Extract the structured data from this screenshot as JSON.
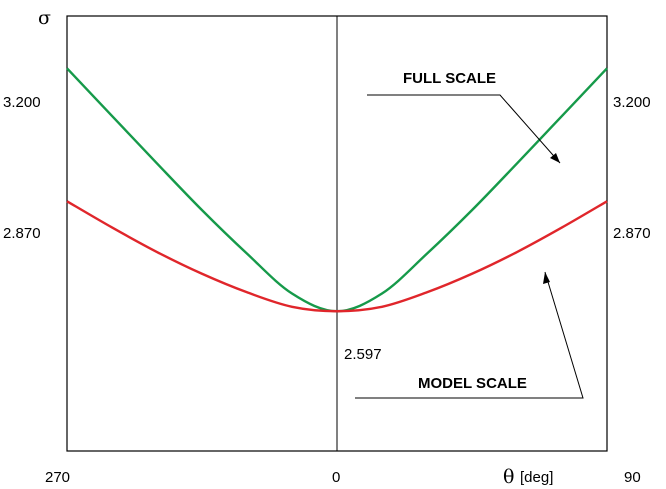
{
  "chart_data": {
    "type": "line",
    "ylabel": "σ",
    "xlabel_symbol": "θ",
    "xlabel_unit": "[deg]",
    "x_ticks": [
      "270",
      "0",
      "90"
    ],
    "x_range": [
      -90,
      90
    ],
    "ylim": [
      2.25,
      3.33
    ],
    "y_ticks_left": [
      "3.200",
      "2.870"
    ],
    "y_ticks_right": [
      "3.200",
      "2.870"
    ],
    "center_value_label": "2.597",
    "grid": false,
    "series": [
      {
        "name": "FULL SCALE",
        "color": "#169a4a",
        "x": [
          -90,
          -75,
          -60,
          -45,
          -30,
          -15,
          0,
          15,
          30,
          45,
          60,
          75,
          90
        ],
        "values": [
          3.2,
          3.082,
          2.964,
          2.848,
          2.74,
          2.641,
          2.597,
          2.641,
          2.74,
          2.848,
          2.964,
          3.082,
          3.2
        ]
      },
      {
        "name": "MODEL SCALE",
        "color": "#e0262b",
        "x": [
          -90,
          -75,
          -60,
          -45,
          -30,
          -15,
          0,
          15,
          30,
          45,
          60,
          75,
          90
        ],
        "values": [
          2.87,
          2.805,
          2.744,
          2.69,
          2.644,
          2.608,
          2.597,
          2.608,
          2.644,
          2.69,
          2.744,
          2.805,
          2.87
        ]
      }
    ],
    "annotations": [
      "FULL SCALE",
      "MODEL SCALE"
    ]
  }
}
